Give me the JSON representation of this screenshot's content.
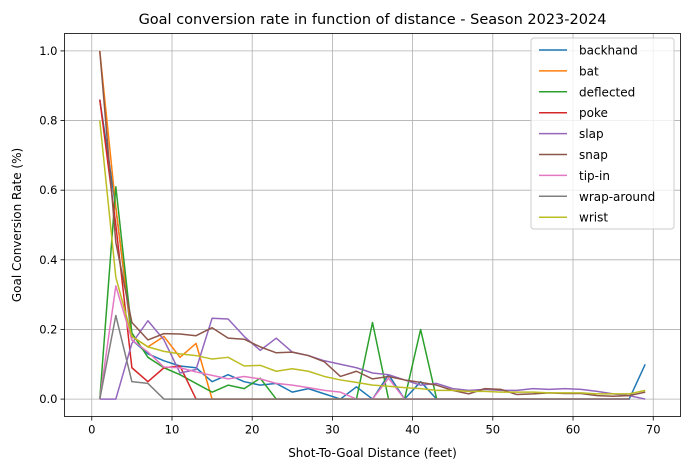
{
  "chart_data": {
    "type": "line",
    "title": "Goal conversion rate in function of distance - Season 2023-2024",
    "xlabel": "Shot-To-Goal Distance (feet)",
    "ylabel": "Goal Conversion Rate (%)",
    "xlim": [
      -3.4,
      73.4
    ],
    "ylim": [
      -0.05,
      1.05
    ],
    "xticks": [
      0,
      10,
      20,
      30,
      40,
      50,
      60,
      70
    ],
    "yticks": [
      0.0,
      0.2,
      0.4,
      0.6,
      0.8,
      1.0
    ],
    "xtick_labels": [
      "0",
      "10",
      "20",
      "30",
      "40",
      "50",
      "60",
      "70"
    ],
    "ytick_labels": [
      "0.0",
      "0.2",
      "0.4",
      "0.6",
      "0.8",
      "1.0"
    ],
    "grid": true,
    "legend_position": "top-right",
    "series": [
      {
        "name": "backhand",
        "color": "#1f77b4",
        "x": [
          1,
          3,
          5,
          7,
          9,
          11,
          13,
          15,
          17,
          19,
          21,
          23,
          25,
          27,
          29,
          31,
          33,
          35,
          37,
          39,
          41,
          43,
          45,
          47,
          49,
          51,
          53,
          55,
          57,
          59,
          61,
          63,
          65,
          67,
          69
        ],
        "y": [
          0.86,
          0.55,
          0.17,
          0.13,
          0.11,
          0.095,
          0.09,
          0.05,
          0.07,
          0.05,
          0.04,
          0.045,
          0.02,
          0.03,
          0.015,
          0.0,
          0.035,
          0.0,
          0.07,
          0.0,
          0.05,
          0.0,
          0.0,
          0.0,
          0.0,
          0.0,
          0.0,
          0.0,
          0.0,
          0.0,
          0.0,
          0.0,
          0.0,
          0.0,
          0.1
        ]
      },
      {
        "name": "bat",
        "color": "#ff7f0e",
        "x": [
          1,
          3,
          5,
          7,
          9,
          11,
          13,
          15,
          17,
          19,
          21,
          23,
          25,
          27,
          29,
          31,
          33,
          35,
          37,
          39,
          41,
          43,
          45,
          47,
          49,
          51,
          53,
          55,
          57,
          59,
          61,
          63,
          65,
          67
        ],
        "y": [
          1.0,
          0.55,
          0.18,
          0.15,
          0.18,
          0.12,
          0.16,
          0.0,
          0.0,
          0.0,
          0.0,
          0.0,
          0.0,
          0.0,
          0.0,
          0.0,
          0.0,
          0.0,
          0.0,
          0.0,
          0.0,
          0.0,
          0.0,
          0.0,
          0.0,
          0.0,
          0.0,
          0.0,
          0.0,
          0.0,
          0.0,
          0.0,
          0.0,
          0.0
        ]
      },
      {
        "name": "deflected",
        "color": "#2ca02c",
        "x": [
          1,
          3,
          5,
          7,
          9,
          11,
          13,
          15,
          17,
          19,
          21,
          23,
          25,
          27,
          29,
          31,
          33,
          35,
          37,
          39,
          41,
          43,
          45,
          47,
          49,
          51,
          53,
          55,
          57,
          59,
          61,
          63,
          65,
          67
        ],
        "y": [
          0.0,
          0.61,
          0.19,
          0.12,
          0.09,
          0.07,
          0.045,
          0.02,
          0.04,
          0.03,
          0.06,
          0.0,
          0.0,
          0.0,
          0.0,
          0.0,
          0.0,
          0.22,
          0.0,
          0.0,
          0.2,
          0.0,
          0.0,
          0.0,
          0.0,
          0.0,
          0.0,
          0.0,
          0.0,
          0.0,
          0.0,
          0.0,
          0.0,
          0.0
        ]
      },
      {
        "name": "poke",
        "color": "#d62728",
        "x": [
          1,
          3,
          5,
          7,
          9,
          11,
          13,
          15,
          17,
          19,
          21,
          23,
          25,
          27,
          29,
          31,
          33,
          35,
          37,
          39,
          41,
          43,
          45,
          47,
          49,
          51,
          53,
          55,
          57,
          59,
          61,
          63,
          65,
          67
        ],
        "y": [
          0.86,
          0.5,
          0.09,
          0.05,
          0.09,
          0.095,
          0.0,
          0.0,
          0.0,
          0.0,
          0.0,
          0.0,
          0.0,
          0.0,
          0.0,
          0.0,
          0.0,
          0.0,
          0.0,
          0.0,
          0.0,
          0.0,
          0.0,
          0.0,
          0.0,
          0.0,
          0.0,
          0.0,
          0.0,
          0.0,
          0.0,
          0.0,
          0.0,
          0.0
        ]
      },
      {
        "name": "slap",
        "color": "#9467bd",
        "x": [
          1,
          3,
          5,
          7,
          9,
          11,
          13,
          15,
          17,
          19,
          21,
          23,
          25,
          27,
          29,
          31,
          33,
          35,
          37,
          39,
          41,
          43,
          45,
          47,
          49,
          51,
          53,
          55,
          57,
          59,
          61,
          63,
          65,
          67,
          69
        ],
        "y": [
          0.0,
          0.0,
          0.16,
          0.225,
          0.17,
          0.075,
          0.085,
          0.232,
          0.23,
          0.18,
          0.14,
          0.175,
          0.135,
          0.125,
          0.11,
          0.1,
          0.09,
          0.075,
          0.07,
          0.055,
          0.04,
          0.045,
          0.03,
          0.025,
          0.028,
          0.025,
          0.025,
          0.03,
          0.028,
          0.03,
          0.028,
          0.022,
          0.015,
          0.01,
          0.0
        ]
      },
      {
        "name": "snap",
        "color": "#8c564b",
        "x": [
          1,
          3,
          5,
          7,
          9,
          11,
          13,
          15,
          17,
          19,
          21,
          23,
          25,
          27,
          29,
          31,
          33,
          35,
          37,
          39,
          41,
          43,
          45,
          47,
          49,
          51,
          53,
          55,
          57,
          59,
          61,
          63,
          65,
          67,
          69
        ],
        "y": [
          1.0,
          0.45,
          0.22,
          0.17,
          0.188,
          0.187,
          0.182,
          0.205,
          0.175,
          0.172,
          0.15,
          0.133,
          0.135,
          0.125,
          0.107,
          0.065,
          0.08,
          0.058,
          0.065,
          0.055,
          0.048,
          0.04,
          0.025,
          0.015,
          0.03,
          0.028,
          0.013,
          0.015,
          0.018,
          0.016,
          0.016,
          0.01,
          0.008,
          0.01,
          0.02
        ]
      },
      {
        "name": "tip-in",
        "color": "#e377c2",
        "x": [
          1,
          3,
          5,
          7,
          9,
          11,
          13,
          15,
          17,
          19,
          21,
          23,
          25,
          27,
          29,
          31,
          33,
          35,
          37,
          39,
          41,
          43,
          45,
          47,
          49,
          51,
          53,
          55,
          57,
          59,
          61,
          63,
          65,
          67
        ],
        "y": [
          0.0,
          0.325,
          0.17,
          0.135,
          0.092,
          0.09,
          0.078,
          0.068,
          0.058,
          0.065,
          0.058,
          0.045,
          0.04,
          0.033,
          0.025,
          0.02,
          0.0,
          0.0,
          0.06,
          0.0,
          0.0,
          0.0,
          0.0,
          0.0,
          0.0,
          0.0,
          0.0,
          0.0,
          0.0,
          0.0,
          0.0,
          0.0,
          0.0,
          0.0
        ]
      },
      {
        "name": "wrap-around",
        "color": "#7f7f7f",
        "x": [
          1,
          3,
          5,
          7,
          9,
          11,
          13,
          15,
          17,
          19,
          21,
          23,
          25,
          27,
          29,
          31,
          33,
          35,
          37,
          39,
          41,
          43,
          45,
          47,
          49,
          51,
          53,
          55,
          57,
          59,
          61,
          63,
          65,
          67
        ],
        "y": [
          0.0,
          0.24,
          0.05,
          0.045,
          0.0,
          0.0,
          0.0,
          0.0,
          0.0,
          0.0,
          0.0,
          0.0,
          0.0,
          0.0,
          0.0,
          0.0,
          0.0,
          0.0,
          0.0,
          0.0,
          0.0,
          0.0,
          0.0,
          0.0,
          0.0,
          0.0,
          0.0,
          0.0,
          0.0,
          0.0,
          0.0,
          0.0,
          0.0,
          0.0
        ]
      },
      {
        "name": "wrist",
        "color": "#bcbd22",
        "x": [
          1,
          3,
          5,
          7,
          9,
          11,
          13,
          15,
          17,
          19,
          21,
          23,
          25,
          27,
          29,
          31,
          33,
          35,
          37,
          39,
          41,
          43,
          45,
          47,
          49,
          51,
          53,
          55,
          57,
          59,
          61,
          63,
          65,
          67,
          69
        ],
        "y": [
          0.8,
          0.35,
          0.18,
          0.15,
          0.137,
          0.13,
          0.125,
          0.115,
          0.12,
          0.095,
          0.097,
          0.08,
          0.087,
          0.08,
          0.065,
          0.055,
          0.048,
          0.04,
          0.037,
          0.033,
          0.03,
          0.025,
          0.025,
          0.022,
          0.022,
          0.02,
          0.02,
          0.02,
          0.018,
          0.018,
          0.018,
          0.015,
          0.015,
          0.015,
          0.025
        ]
      }
    ]
  }
}
